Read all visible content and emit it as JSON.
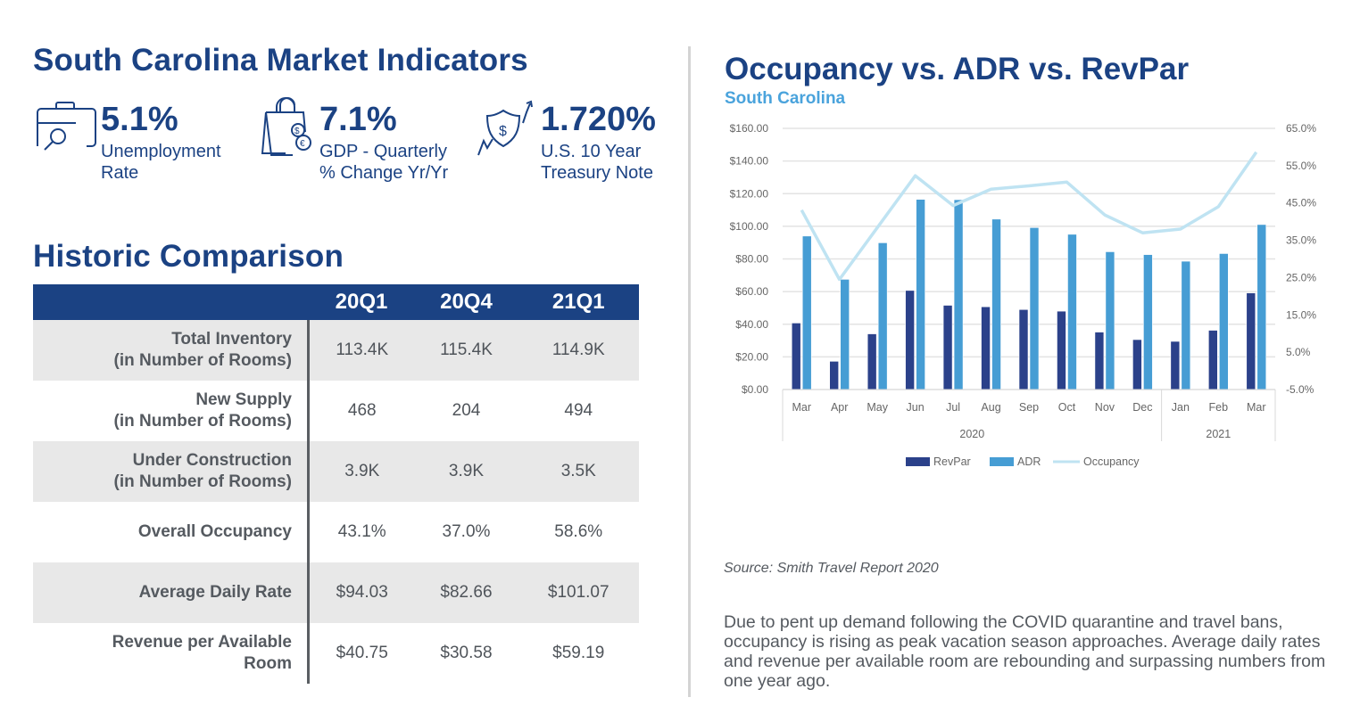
{
  "left": {
    "title": "South Carolina Market Indicators",
    "indicators": [
      {
        "icon": "briefcase-search-icon",
        "value": "5.1%",
        "label_line1": "Unemployment",
        "label_line2": "Rate"
      },
      {
        "icon": "shopping-bag-currency-icon",
        "value": "7.1%",
        "label_line1": "GDP - Quarterly",
        "label_line2": "% Change Yr/Yr"
      },
      {
        "icon": "shield-dollar-growth-icon",
        "value": "1.720%",
        "label_line1": "U.S. 10 Year",
        "label_line2": "Treasury Note"
      }
    ],
    "historic_title": "Historic Comparison",
    "table": {
      "columns": [
        "",
        "20Q1",
        "20Q4",
        "21Q1"
      ],
      "rows": [
        {
          "label_line1": "Total Inventory",
          "label_line2": "(in Number of Rooms)",
          "values": [
            "113.4K",
            "115.4K",
            "114.9K"
          ]
        },
        {
          "label_line1": "New Supply",
          "label_line2": "(in Number of Rooms)",
          "values": [
            "468",
            "204",
            "494"
          ]
        },
        {
          "label_line1": "Under Construction",
          "label_line2": "(in Number of Rooms)",
          "values": [
            "3.9K",
            "3.9K",
            "3.5K"
          ]
        },
        {
          "label_line1": "Overall Occupancy",
          "label_line2": "",
          "values": [
            "43.1%",
            "37.0%",
            "58.6%"
          ]
        },
        {
          "label_line1": "Average Daily Rate",
          "label_line2": "",
          "values": [
            "$94.03",
            "$82.66",
            "$101.07"
          ]
        },
        {
          "label_line1": "Revenue per Available",
          "label_line2": "Room",
          "values": [
            "$40.75",
            "$30.58",
            "$59.19"
          ]
        }
      ]
    }
  },
  "right": {
    "source": "Source: Smith Travel Report 2020",
    "paragraph": "Due to pent up demand following the COVID quarantine and travel bans, occupancy is rising as peak vacation season approaches. Average daily rates and revenue per available room are rebounding and surpassing numbers from one year ago."
  },
  "colors": {
    "brand_navy": "#1b4283",
    "revpar": "#2b418a",
    "adr": "#469dd4",
    "occupancy": "#bfe3f2",
    "subtitle": "#4aa3dc"
  },
  "chart_data": {
    "type": "bar",
    "title": "Occupancy vs. ADR vs. RevPar",
    "subtitle": "South Carolina",
    "categories": [
      "Mar",
      "Apr",
      "May",
      "Jun",
      "Jul",
      "Aug",
      "Sep",
      "Oct",
      "Nov",
      "Dec",
      "Jan",
      "Feb",
      "Mar"
    ],
    "category_groups": [
      {
        "label": "2020",
        "count": 10
      },
      {
        "label": "2021",
        "count": 3
      }
    ],
    "series": [
      {
        "name": "RevPar",
        "type": "bar",
        "axis": "left",
        "values": [
          40.75,
          17.3,
          34.1,
          60.7,
          51.6,
          50.7,
          49.0,
          48.0,
          35.2,
          30.58,
          29.5,
          36.3,
          59.19
        ]
      },
      {
        "name": "ADR",
        "type": "bar",
        "axis": "left",
        "values": [
          94.03,
          67.5,
          89.9,
          116.5,
          116.3,
          104.4,
          99.2,
          95.1,
          84.4,
          82.66,
          78.6,
          83.3,
          101.07
        ]
      },
      {
        "name": "Occupancy",
        "type": "line",
        "axis": "right",
        "values": [
          43.1,
          24.5,
          38.4,
          52.3,
          44.3,
          48.7,
          49.6,
          50.6,
          41.8,
          37.0,
          38.0,
          44.0,
          58.6
        ]
      }
    ],
    "y_left": {
      "min": 0,
      "max": 160,
      "step": 20,
      "tick_labels": [
        "$0.00",
        "$20.00",
        "$40.00",
        "$60.00",
        "$80.00",
        "$100.00",
        "$120.00",
        "$140.00",
        "$160.00"
      ]
    },
    "y_right": {
      "min": -5,
      "max": 65,
      "step": 10,
      "tick_labels": [
        "-5.0%",
        "5.0%",
        "15.0%",
        "25.0%",
        "35.0%",
        "45.0%",
        "55.0%",
        "65.0%"
      ]
    },
    "grid": true,
    "legend": {
      "placement": "bottom",
      "entries": [
        "RevPar",
        "ADR",
        "Occupancy"
      ]
    }
  }
}
